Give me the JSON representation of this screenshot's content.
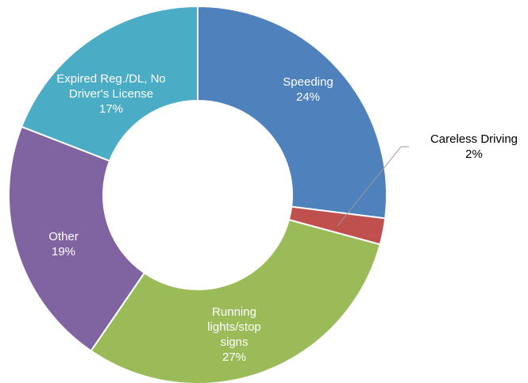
{
  "chart_data": {
    "type": "donut",
    "categories": [
      "Speeding",
      "Careless Driving",
      "Running lights/stop signs",
      "Other",
      "Expired Reg./DL, No Driver's License"
    ],
    "values": [
      24,
      2,
      27,
      19,
      17
    ],
    "value_labels": [
      "24%",
      "2%",
      "27%",
      "19%",
      "17%"
    ],
    "colors": [
      "#4f81bd",
      "#c0504d",
      "#9bbb59",
      "#8064a2",
      "#4bacc6"
    ]
  }
}
